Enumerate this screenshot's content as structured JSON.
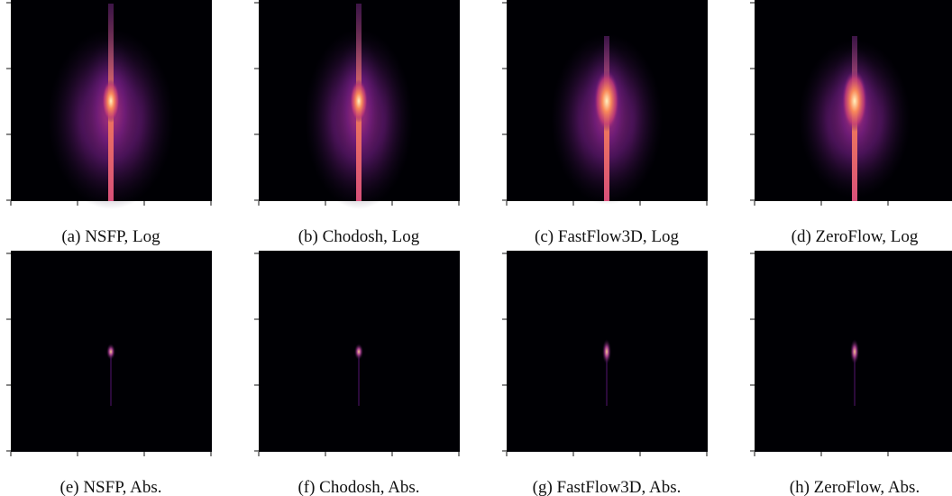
{
  "panels": [
    {
      "caption": "(a) NSFP, Log"
    },
    {
      "caption": "(b) Chodosh, Log"
    },
    {
      "caption": "(c) FastFlow3D, Log"
    },
    {
      "caption": "(d) ZeroFlow, Log"
    },
    {
      "caption": "(e) NSFP, Abs."
    },
    {
      "caption": "(f) Chodosh, Abs."
    },
    {
      "caption": "(g) FastFlow3D, Abs."
    },
    {
      "caption": "(h) ZeroFlow, Abs."
    }
  ]
}
